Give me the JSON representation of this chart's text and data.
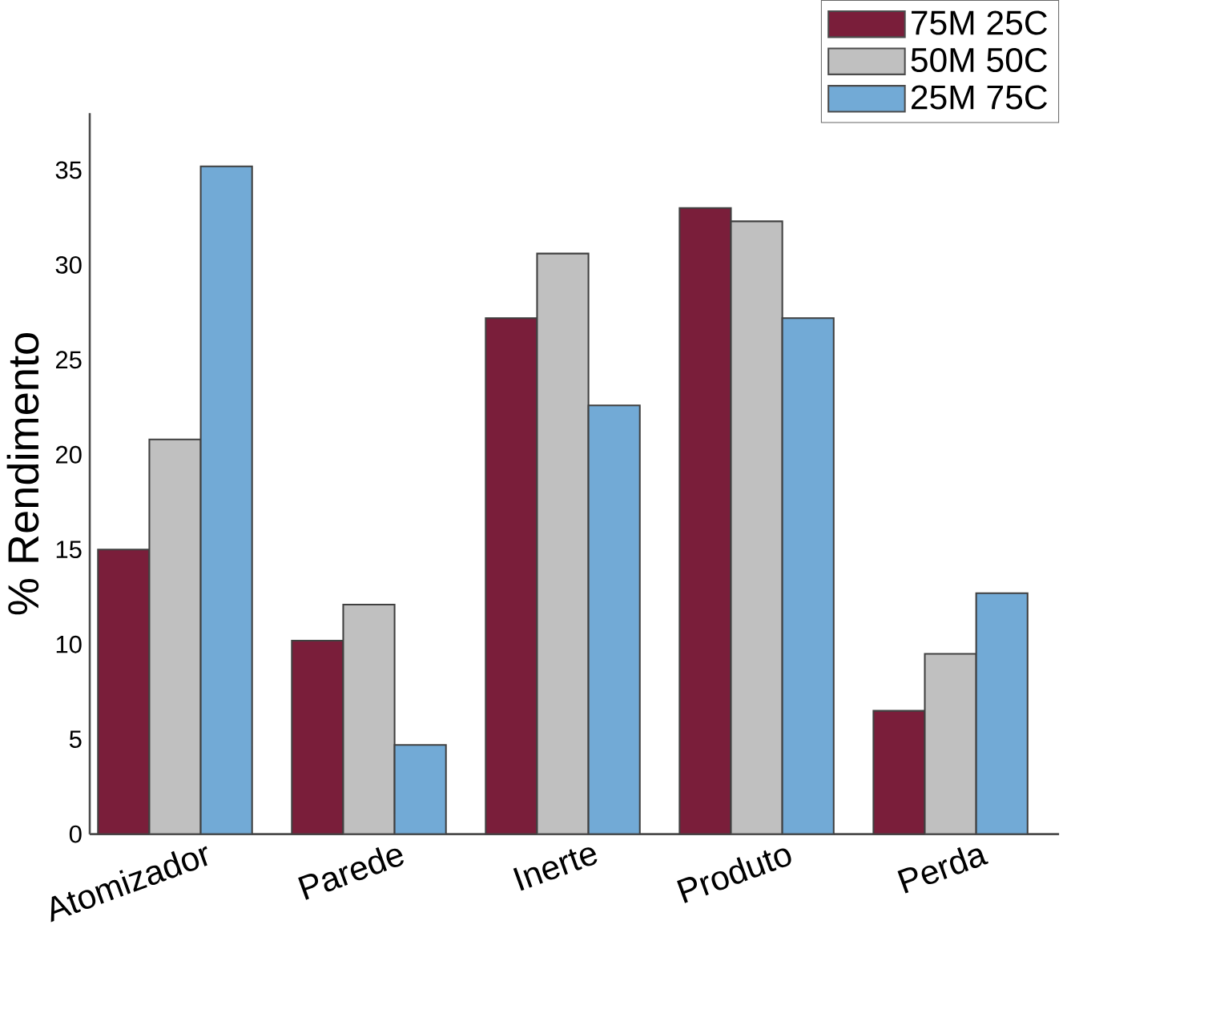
{
  "chart_data": {
    "type": "bar",
    "ylabel": "% Rendimento",
    "categories": [
      "Atomizador",
      "Parede",
      "Inerte",
      "Produto",
      "Perda"
    ],
    "series": [
      {
        "name": "75M 25C",
        "color": "#7a1e3a",
        "values": [
          15.0,
          10.2,
          27.2,
          33.0,
          6.5
        ]
      },
      {
        "name": "50M 50C",
        "color": "#c0c0c0",
        "values": [
          20.8,
          12.1,
          30.6,
          32.3,
          9.5
        ]
      },
      {
        "name": "25M 75C",
        "color": "#72aad6",
        "values": [
          35.2,
          4.7,
          22.6,
          27.2,
          12.7
        ]
      }
    ],
    "ylim": [
      0,
      38
    ],
    "yticks": [
      0,
      5,
      10,
      15,
      20,
      25,
      30,
      35
    ],
    "legend": "top right"
  }
}
